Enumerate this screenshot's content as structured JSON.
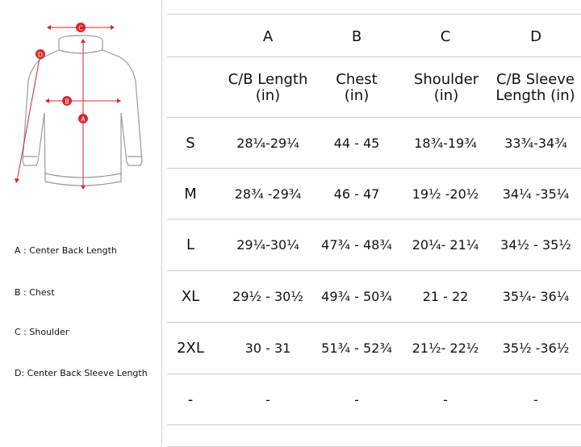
{
  "diagram": {
    "markers": [
      "C",
      "D",
      "B",
      "A"
    ],
    "marker_color": "#d9262b"
  },
  "legend": {
    "a": "A : Center Back Length",
    "b": "B : Chest",
    "c": "C : Shoulder",
    "d": "D:  Center Back Sleeve Length"
  },
  "table": {
    "column_letters": [
      "A",
      "B",
      "C",
      "D"
    ],
    "column_titles": [
      "C/B Length\n(in)",
      "Chest\n(in)",
      "Shoulder\n(in)",
      "C/B Sleeve\nLength (in)"
    ],
    "rows": [
      {
        "size": "S",
        "cells": [
          "28¼-29¼",
          "44 - 45",
          "18¾-19¾",
          "33¾-34¾"
        ]
      },
      {
        "size": "M",
        "cells": [
          "28¾ -29¾",
          "46 - 47",
          "19½ -20½",
          "34¼ -35¼"
        ]
      },
      {
        "size": "L",
        "cells": [
          "29¼-30¼",
          "47¾ - 48¾",
          "20¼- 21¼",
          "34½ - 35½"
        ]
      },
      {
        "size": "XL",
        "cells": [
          "29½ - 30½",
          "49¾ - 50¾",
          "21 - 22",
          "35¼- 36¼"
        ]
      },
      {
        "size": "2XL",
        "cells": [
          "30 - 31",
          "51¾ - 52¾",
          "21½- 22½",
          "35½ -36½"
        ]
      },
      {
        "size": "-",
        "cells": [
          "-",
          "-",
          "-",
          "-"
        ]
      }
    ]
  }
}
